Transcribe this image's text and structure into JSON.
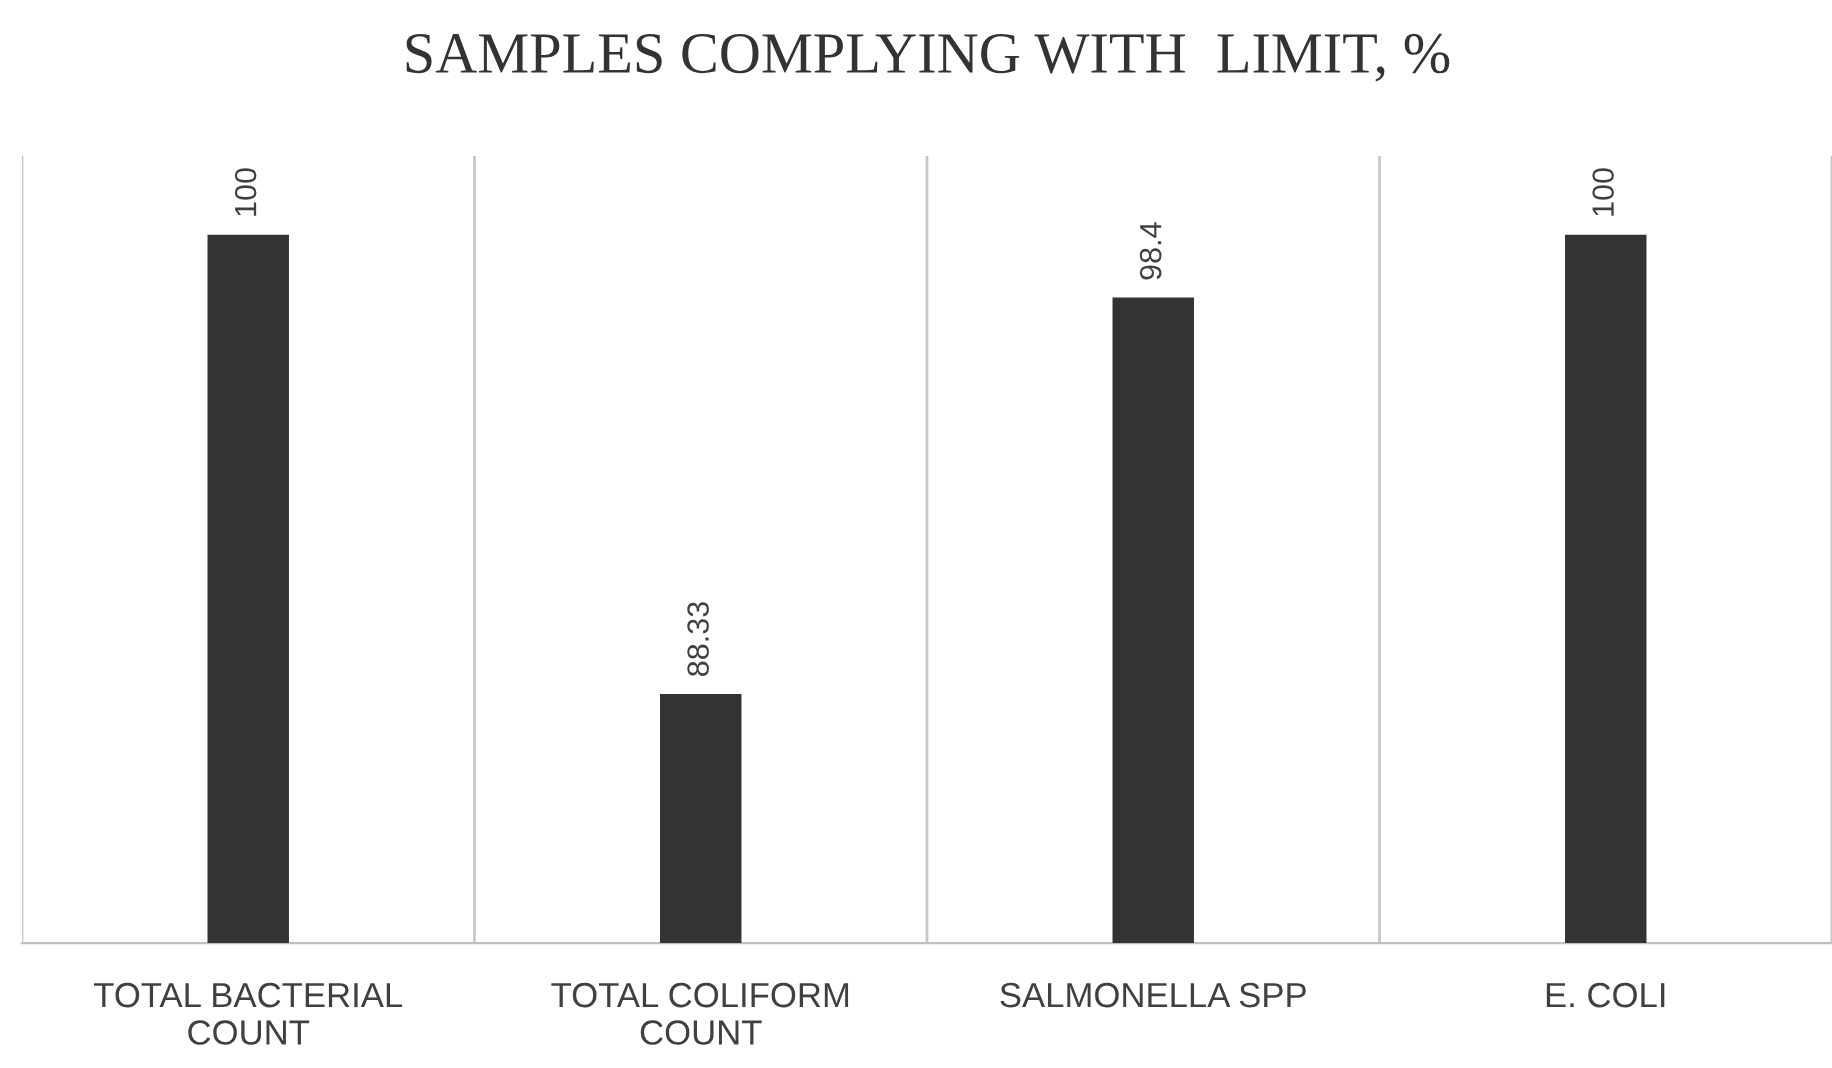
{
  "chart_data": {
    "type": "bar",
    "title": "SAMPLES COMPLYING WITH  LIMIT, %",
    "categories": [
      "TOTAL BACTERIAL COUNT",
      "TOTAL COLIFORM COUNT",
      "SALMONELLA SPP",
      "E. COLI"
    ],
    "values": [
      100,
      88.33,
      98.4,
      100
    ],
    "color": "#333333",
    "ylim": [
      82,
      102
    ],
    "data_labels": true,
    "grid": "x",
    "tick_labels": "x",
    "legend": false
  }
}
